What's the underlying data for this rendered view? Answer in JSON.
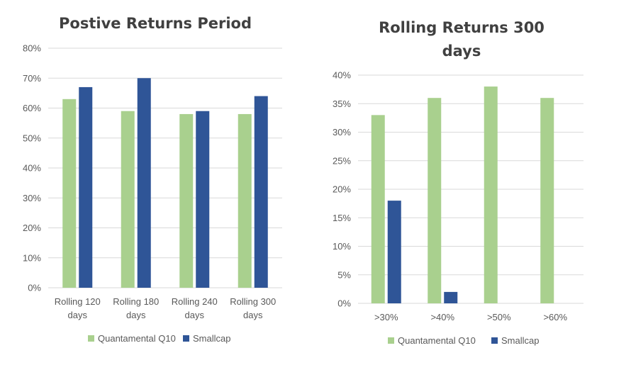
{
  "colors": {
    "series1": "#a9d08e",
    "series2": "#2f5597"
  },
  "chart_data": [
    {
      "type": "bar",
      "title": "Postive Returns Period",
      "categories": [
        [
          "Rolling 120",
          "days"
        ],
        [
          "Rolling 180",
          "days"
        ],
        [
          "Rolling 240",
          "days"
        ],
        [
          "Rolling 300",
          "days"
        ]
      ],
      "series": [
        {
          "name": "Quantamental Q10",
          "values": [
            63,
            59,
            58,
            58
          ]
        },
        {
          "name": "Smallcap",
          "values": [
            67,
            70,
            59,
            64
          ]
        }
      ],
      "ylim": [
        0,
        80
      ],
      "ytick_step": 10,
      "ytick_suffix": "%",
      "grid": true,
      "legend": "bottom"
    },
    {
      "type": "bar",
      "title": [
        "Rolling Returns 300",
        "days"
      ],
      "categories": [
        [
          ">30%"
        ],
        [
          ">40%"
        ],
        [
          ">50%"
        ],
        [
          ">60%"
        ]
      ],
      "series": [
        {
          "name": "Quantamental Q10",
          "values": [
            33,
            36,
            38,
            36
          ]
        },
        {
          "name": "Smallcap",
          "values": [
            18,
            2,
            0,
            0
          ]
        }
      ],
      "ylim": [
        0,
        40
      ],
      "ytick_step": 5,
      "ytick_suffix": "%",
      "grid": true,
      "legend": "bottom"
    }
  ]
}
